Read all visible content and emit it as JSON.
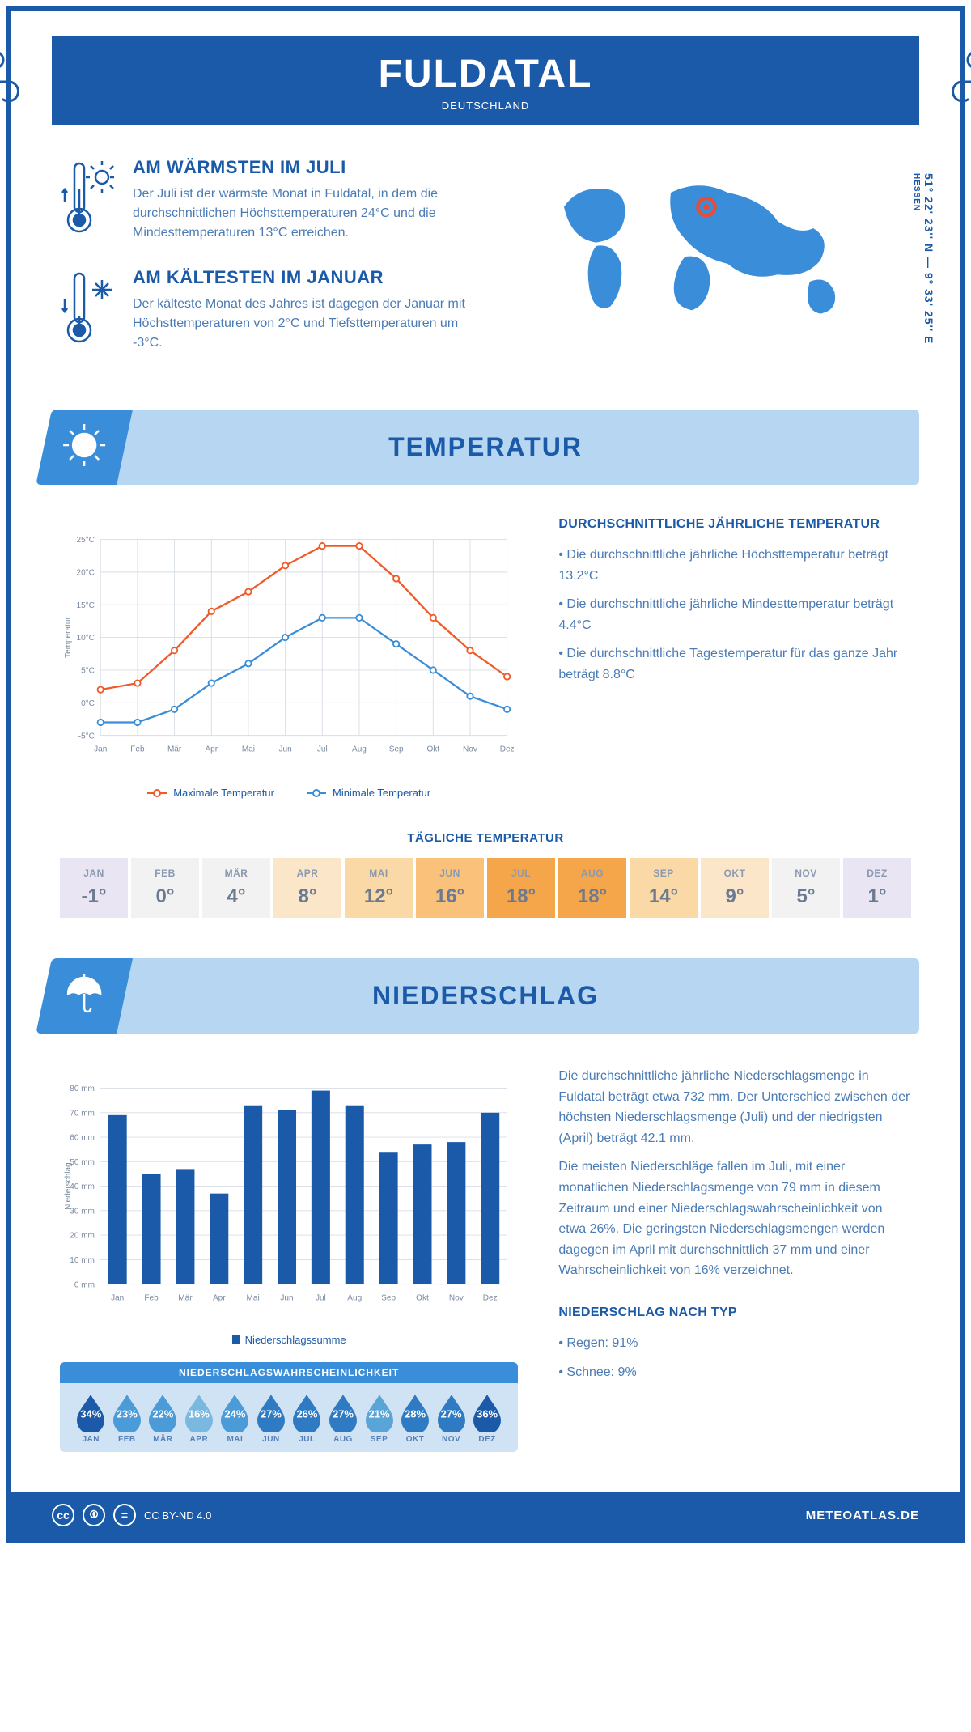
{
  "header": {
    "title": "FULDATAL",
    "country": "DEUTSCHLAND",
    "coords": "51° 22' 23'' N — 9° 33' 25'' E",
    "region": "HESSEN"
  },
  "colors": {
    "primary": "#1a5aa8",
    "light_blue": "#b7d6f2",
    "mid_blue": "#3a8dd8",
    "text_body": "#4a7bb5",
    "max_line": "#f05a28",
    "min_line": "#3a8dd8",
    "grid": "#d7dde5",
    "marker_pin": "#e94b35"
  },
  "facts": {
    "warm": {
      "title": "AM WÄRMSTEN IM JULI",
      "text": "Der Juli ist der wärmste Monat in Fuldatal, in dem die durchschnittlichen Höchsttemperaturen 24°C und die Mindesttemperaturen 13°C erreichen."
    },
    "cold": {
      "title": "AM KÄLTESTEN IM JANUAR",
      "text": "Der kälteste Monat des Jahres ist dagegen der Januar mit Höchsttemperaturen von 2°C und Tiefsttemperaturen um -3°C."
    }
  },
  "temp_section": {
    "banner": "TEMPERATUR",
    "chart": {
      "type": "line",
      "months": [
        "Jan",
        "Feb",
        "Mär",
        "Apr",
        "Mai",
        "Jun",
        "Jul",
        "Aug",
        "Sep",
        "Okt",
        "Nov",
        "Dez"
      ],
      "max_values": [
        2,
        3,
        8,
        14,
        17,
        21,
        24,
        24,
        19,
        13,
        8,
        4
      ],
      "min_values": [
        -3,
        -3,
        -1,
        3,
        6,
        10,
        13,
        13,
        9,
        5,
        1,
        -1
      ],
      "ylim": [
        -5,
        25
      ],
      "ytick_step": 5,
      "ylabel": "Temperatur",
      "max_label": "Maximale Temperatur",
      "min_label": "Minimale Temperatur",
      "max_color": "#f05a28",
      "min_color": "#3a8dd8",
      "line_width": 2.5,
      "marker": "circle-open",
      "grid_color": "#d7dde5"
    },
    "desc": {
      "title": "DURCHSCHNITTLICHE JÄHRLICHE TEMPERATUR",
      "bullets": [
        "Die durchschnittliche jährliche Höchsttemperatur beträgt 13.2°C",
        "Die durchschnittliche jährliche Mindesttemperatur beträgt 4.4°C",
        "Die durchschnittliche Tagestemperatur für das ganze Jahr beträgt 8.8°C"
      ]
    },
    "daily": {
      "title": "TÄGLICHE TEMPERATUR",
      "months": [
        "JAN",
        "FEB",
        "MÄR",
        "APR",
        "MAI",
        "JUN",
        "JUL",
        "AUG",
        "SEP",
        "OKT",
        "NOV",
        "DEZ"
      ],
      "values": [
        "-1°",
        "0°",
        "4°",
        "8°",
        "12°",
        "16°",
        "18°",
        "18°",
        "14°",
        "9°",
        "5°",
        "1°"
      ],
      "cell_colors": [
        "#e9e5f3",
        "#f2f2f2",
        "#f2f2f2",
        "#fbe6c9",
        "#fbd9a6",
        "#f9c179",
        "#f5a64a",
        "#f5a64a",
        "#fbd9a6",
        "#fbe6c9",
        "#f2f2f2",
        "#e9e5f3"
      ]
    }
  },
  "precip_section": {
    "banner": "NIEDERSCHLAG",
    "chart": {
      "type": "bar",
      "months": [
        "Jan",
        "Feb",
        "Mär",
        "Apr",
        "Mai",
        "Jun",
        "Jul",
        "Aug",
        "Sep",
        "Okt",
        "Nov",
        "Dez"
      ],
      "values": [
        69,
        45,
        47,
        37,
        73,
        71,
        79,
        73,
        54,
        57,
        58,
        70
      ],
      "ylim": [
        0,
        80
      ],
      "ytick_step": 10,
      "ylabel": "Niederschlag",
      "bar_color": "#1a5aa8",
      "bar_width": 0.55,
      "legend_label": "Niederschlagssumme",
      "grid_color": "#d7dde5",
      "unit": "mm"
    },
    "text1": "Die durchschnittliche jährliche Niederschlagsmenge in Fuldatal beträgt etwa 732 mm. Der Unterschied zwischen der höchsten Niederschlagsmenge (Juli) und der niedrigsten (April) beträgt 42.1 mm.",
    "text2": "Die meisten Niederschläge fallen im Juli, mit einer monatlichen Niederschlagsmenge von 79 mm in diesem Zeitraum und einer Niederschlagswahrscheinlichkeit von etwa 26%. Die geringsten Niederschlagsmengen werden dagegen im April mit durchschnittlich 37 mm und einer Wahrscheinlichkeit von 16% verzeichnet.",
    "prob": {
      "title": "NIEDERSCHLAGSWAHRSCHEINLICHKEIT",
      "months": [
        "JAN",
        "FEB",
        "MÄR",
        "APR",
        "MAI",
        "JUN",
        "JUL",
        "AUG",
        "SEP",
        "OKT",
        "NOV",
        "DEZ"
      ],
      "values": [
        "34%",
        "23%",
        "22%",
        "16%",
        "24%",
        "27%",
        "26%",
        "27%",
        "21%",
        "28%",
        "27%",
        "36%"
      ],
      "drop_colors": [
        "#1a5aa8",
        "#4b9bd8",
        "#4b9bd8",
        "#7ab8e0",
        "#4b9bd8",
        "#2e7bc4",
        "#2e7bc4",
        "#2e7bc4",
        "#5aa5d8",
        "#2e7bc4",
        "#2e7bc4",
        "#1a5aa8"
      ]
    },
    "by_type": {
      "title": "NIEDERSCHLAG NACH TYP",
      "bullets": [
        "Regen: 91%",
        "Schnee: 9%"
      ]
    }
  },
  "footer": {
    "license": "CC BY-ND 4.0",
    "site": "METEOATLAS.DE"
  }
}
